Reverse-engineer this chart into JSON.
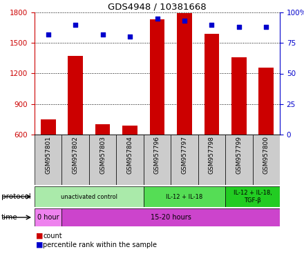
{
  "title": "GDS4948 / 10381668",
  "samples": [
    "GSM957801",
    "GSM957802",
    "GSM957803",
    "GSM957804",
    "GSM957796",
    "GSM957797",
    "GSM957798",
    "GSM957799",
    "GSM957800"
  ],
  "counts": [
    750,
    1370,
    700,
    690,
    1730,
    1790,
    1590,
    1360,
    1260
  ],
  "percentile_ranks": [
    82,
    90,
    82,
    80,
    95,
    93,
    90,
    88,
    88
  ],
  "ylim_left": [
    600,
    1800
  ],
  "ylim_right": [
    0,
    100
  ],
  "yticks_left": [
    600,
    900,
    1200,
    1500,
    1800
  ],
  "yticks_right": [
    0,
    25,
    50,
    75,
    100
  ],
  "bar_color": "#cc0000",
  "dot_color": "#0000cc",
  "protocol_groups": [
    {
      "label": "unactivated control",
      "start": 0,
      "end": 4,
      "color": "#aaeaaa"
    },
    {
      "label": "IL-12 + IL-18",
      "start": 4,
      "end": 7,
      "color": "#55dd55"
    },
    {
      "label": "IL-12 + IL-18,\nTGF-β",
      "start": 7,
      "end": 9,
      "color": "#22cc22"
    }
  ],
  "time_groups": [
    {
      "label": "0 hour",
      "start": 0,
      "end": 1,
      "color": "#ee82ee"
    },
    {
      "label": "15-20 hours",
      "start": 1,
      "end": 9,
      "color": "#cc44cc"
    }
  ],
  "left_axis_color": "#cc0000",
  "right_axis_color": "#0000cc",
  "background_color": "#ffffff",
  "sample_bg_color": "#cccccc"
}
